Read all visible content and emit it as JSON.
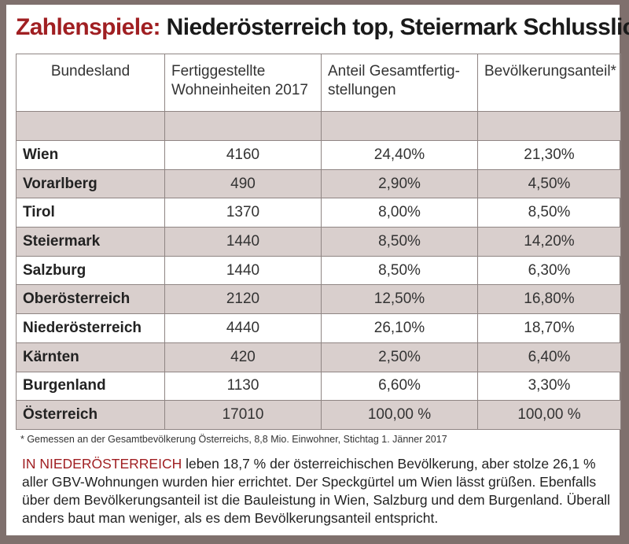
{
  "headline": {
    "accent": "Zahlenspiele:",
    "rest": " Niederösterreich top, Steiermark Schlusslicht"
  },
  "table": {
    "headers": [
      "Bundesland",
      "Fertiggestellte Wohneinheiten 2017",
      "Anteil Gesamtfertig- stellungen",
      "Bevölkerungsanteil*"
    ],
    "rows": [
      [
        "Wien",
        "4160",
        "24,40%",
        "21,30%"
      ],
      [
        "Vorarlberg",
        "490",
        "2,90%",
        "4,50%"
      ],
      [
        "Tirol",
        "1370",
        "8,00%",
        "8,50%"
      ],
      [
        "Steiermark",
        "1440",
        "8,50%",
        "14,20%"
      ],
      [
        "Salzburg",
        "1440",
        "8,50%",
        "6,30%"
      ],
      [
        "Oberösterreich",
        "2120",
        "12,50%",
        "16,80%"
      ],
      [
        "Niederösterreich",
        "4440",
        "26,10%",
        "18,70%"
      ],
      [
        "Kärnten",
        "420",
        "2,50%",
        "6,40%"
      ],
      [
        "Burgenland",
        "1130",
        "6,60%",
        "3,30%"
      ],
      [
        "Österreich",
        "17010",
        "100,00 %",
        "100,00 %"
      ]
    ]
  },
  "footnote": "* Gemessen an der Gesamtbevölkerung Österreichs, 8,8 Mio. Einwohner, Stichtag 1. Jänner 2017",
  "body": {
    "lead": "IN NIEDERÖSTERREICH",
    "text": " leben 18,7 % der österreichischen Bevölkerung, aber stolze 26,1 % aller GBV-Wohnungen wurden hier errichtet. Der Speckgürtel um Wien lässt grüßen. Ebenfalls über dem Bevölke­rungsanteil ist die Bauleistung in Wien, Salzburg und dem Burgenland. Überall anders baut man weniger, als es dem Bevölkerungsanteil entspricht."
  },
  "colors": {
    "accent": "#a01f22",
    "frame": "#7f706d",
    "row_shade": "#d9cfcd"
  }
}
